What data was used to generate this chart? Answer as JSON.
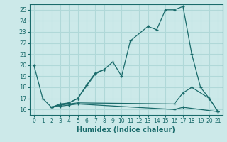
{
  "xlabel": "Humidex (Indice chaleur)",
  "xlim": [
    -0.5,
    21.5
  ],
  "ylim": [
    15.5,
    25.5
  ],
  "yticks": [
    16,
    17,
    18,
    19,
    20,
    21,
    22,
    23,
    24,
    25
  ],
  "xticks": [
    0,
    1,
    2,
    3,
    4,
    5,
    6,
    7,
    8,
    9,
    10,
    11,
    12,
    13,
    14,
    15,
    16,
    17,
    18,
    19,
    20,
    21
  ],
  "background_color": "#cce9e9",
  "grid_color": "#b0d8d8",
  "line_color": "#1a6b6b",
  "series": [
    [
      20.0,
      17.0,
      16.2,
      16.5,
      16.6,
      17.0,
      18.2,
      19.3,
      19.6,
      20.3,
      19.0,
      22.2,
      null,
      23.5,
      23.2,
      25.0,
      25.0,
      25.3,
      21.0,
      18.0,
      17.0,
      15.8
    ],
    [
      null,
      null,
      16.2,
      16.4,
      16.6,
      17.0,
      null,
      19.2,
      19.6,
      null,
      null,
      null,
      null,
      null,
      null,
      null,
      null,
      null,
      null,
      null,
      null,
      null
    ],
    [
      null,
      null,
      16.2,
      16.4,
      16.5,
      16.6,
      null,
      null,
      null,
      null,
      null,
      null,
      null,
      null,
      null,
      null,
      16.5,
      17.5,
      18.0,
      null,
      17.0,
      15.8
    ],
    [
      null,
      null,
      16.2,
      16.3,
      16.4,
      16.5,
      null,
      null,
      null,
      null,
      null,
      null,
      null,
      null,
      null,
      null,
      16.0,
      16.2,
      null,
      null,
      null,
      15.8
    ]
  ]
}
